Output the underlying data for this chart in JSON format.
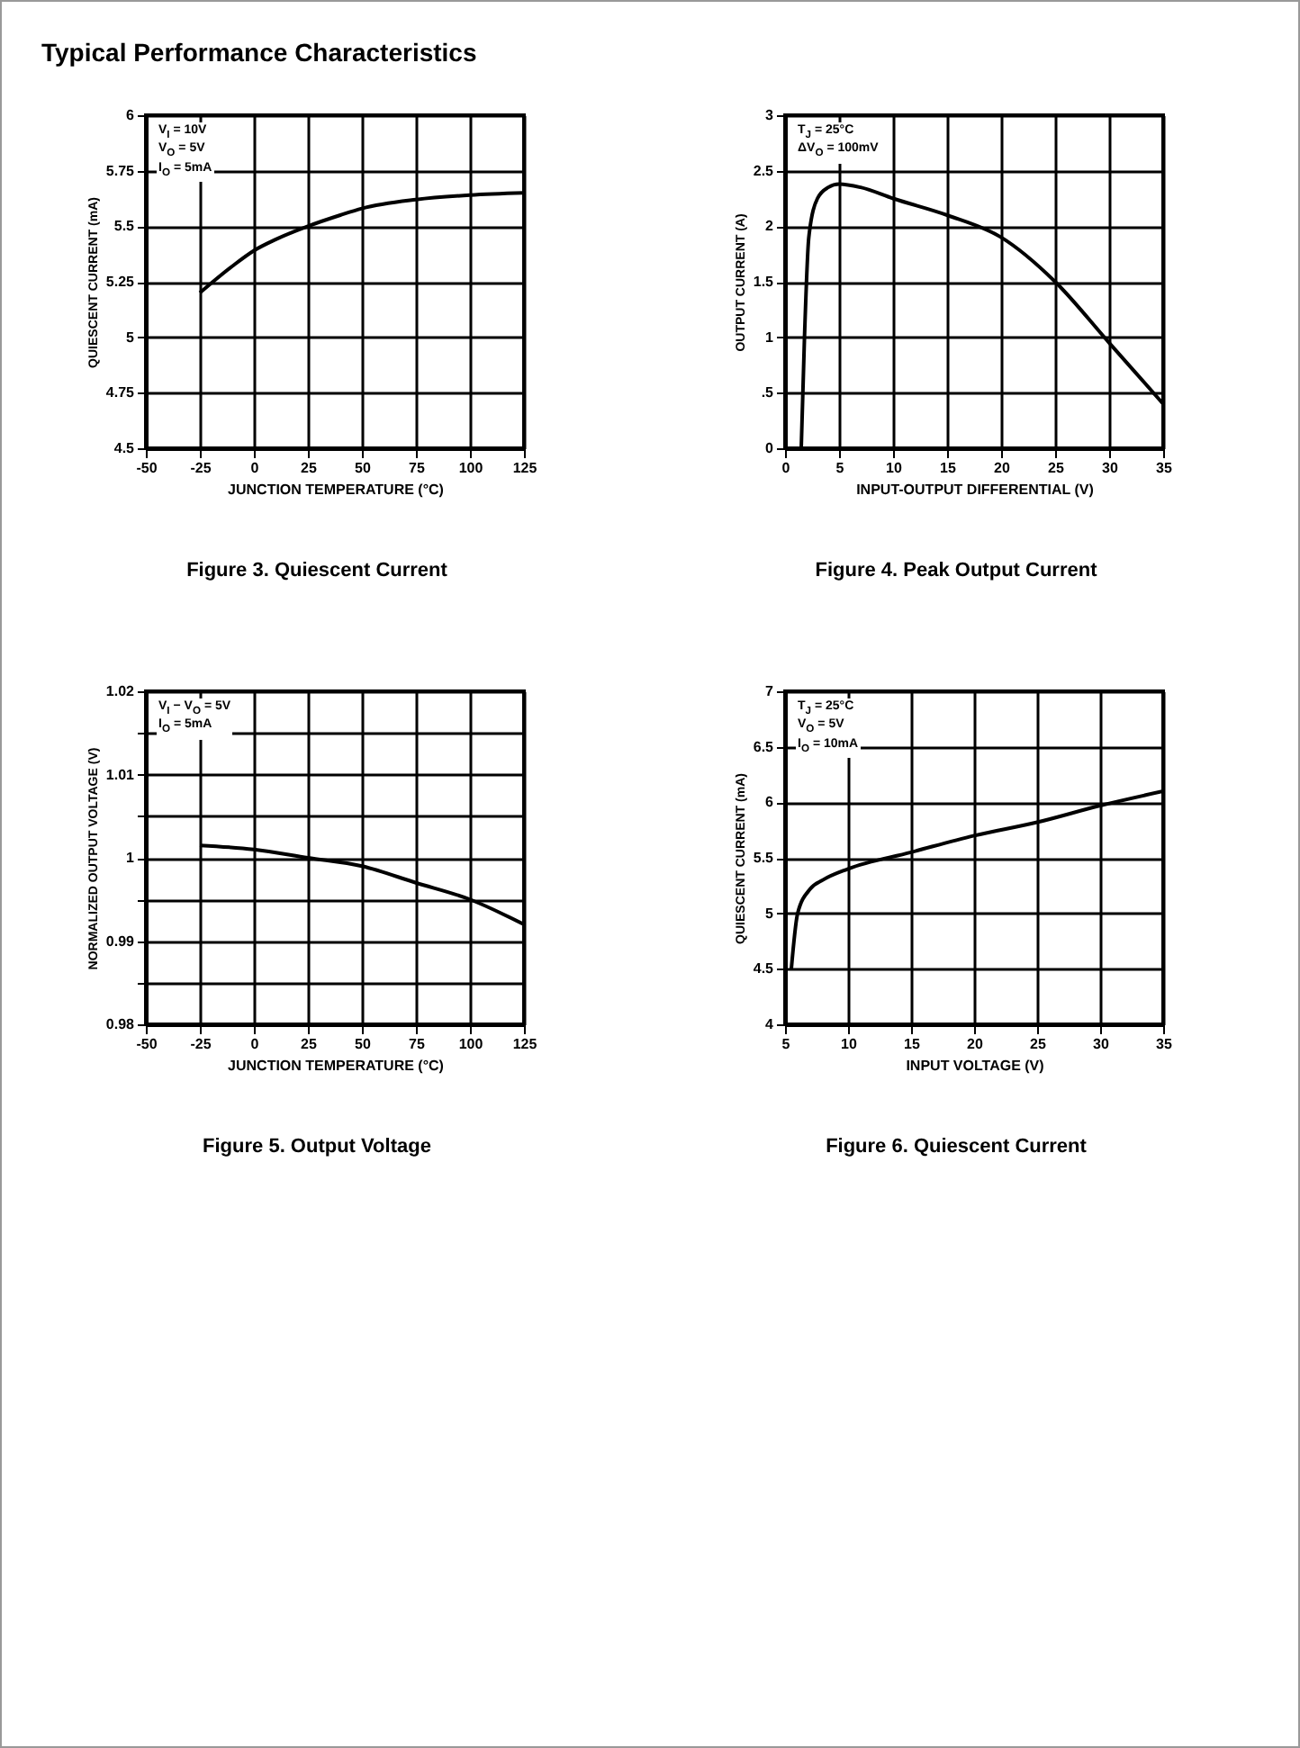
{
  "chart_data": [
    {
      "type": "line",
      "title": "Typical Performance Characteristics",
      "xlabel": "JUNCTION TEMPERATURE (°C)",
      "ylabel": "QUIESCENT CURRENT (mA)",
      "annotations": [
        "V$_{I}$ = 10V",
        "V$_{O}$ = 5V",
        "I$_{O}$ = 5mA",
        "Figure 3. Quiescent Current"
      ],
      "xlim": [
        -50,
        125
      ],
      "xticks": [
        -50,
        -25,
        0,
        25,
        50,
        75,
        100,
        125
      ],
      "ylim": [
        4.5,
        6
      ],
      "yticks": [
        4.5,
        4.75,
        5,
        5.25,
        5.5,
        5.75,
        6
      ],
      "grid": true,
      "series": [
        {
          "color": "#000000",
          "x": [
            -25,
            -10,
            0,
            10,
            25,
            40,
            50,
            75,
            100,
            125
          ],
          "values": [
            5.2,
            5.32,
            5.39,
            5.44,
            5.5,
            5.55,
            5.58,
            5.62,
            5.64,
            5.65
          ]
        }
      ]
    },
    {
      "type": "line",
      "xlabel": "INPUT-OUTPUT DIFFERENTIAL (V)",
      "ylabel": "OUTPUT CURRENT (A)",
      "annotations": [
        "T$_{J}$ = 25°C",
        "ΔV$_{O}$ = 100mV",
        "Figure 4. Peak Output Current"
      ],
      "xlim": [
        0,
        35
      ],
      "xticks": [
        0,
        5,
        10,
        15,
        20,
        25,
        30,
        35
      ],
      "ylim": [
        0,
        3
      ],
      "yticks": [
        0,
        {
          "value": 0.5,
          "label": ".5"
        },
        1,
        1.5,
        2,
        2.5,
        3
      ],
      "grid": true,
      "series": [
        {
          "color": "#000000",
          "x": [
            1.5,
            1.8,
            2.2,
            3,
            4,
            5,
            7,
            10,
            15,
            20,
            25,
            30,
            35
          ],
          "values": [
            0,
            1,
            1.9,
            2.25,
            2.35,
            2.38,
            2.35,
            2.25,
            2.1,
            1.9,
            1.5,
            0.95,
            0.4
          ]
        }
      ]
    },
    {
      "type": "line",
      "xlabel": "JUNCTION TEMPERATURE (°C)",
      "ylabel": "NORMALIZED OUTPUT VOLTAGE (V)",
      "annotations": [
        "V$_{I}$ − V$_{O}$ = 5V",
        "I$_{O}$ = 5mA",
        "Figure 5. Output Voltage"
      ],
      "xlim": [
        -50,
        125
      ],
      "xticks": [
        -50,
        -25,
        0,
        25,
        50,
        75,
        100,
        125
      ],
      "ylim": [
        0.98,
        1.02
      ],
      "yticks": [
        0.98,
        {
          "value": 0.985,
          "label": null
        },
        0.99,
        {
          "value": 0.995,
          "label": null
        },
        1,
        {
          "value": 1.005,
          "label": null
        },
        1.01,
        {
          "value": 1.015,
          "label": null
        },
        1.02
      ],
      "grid": true,
      "series": [
        {
          "color": "#000000",
          "x": [
            -25,
            0,
            25,
            50,
            75,
            100,
            125
          ],
          "values": [
            1.0015,
            1.001,
            1.0,
            0.999,
            0.997,
            0.995,
            0.992
          ]
        }
      ]
    },
    {
      "type": "line",
      "xlabel": "INPUT VOLTAGE (V)",
      "ylabel": "QUIESCENT CURRENT (mA)",
      "annotations": [
        "T$_{J}$ = 25°C",
        "V$_{O}$ = 5V",
        "I$_{O}$ = 10mA",
        "Figure 6. Quiescent Current"
      ],
      "xlim": [
        5,
        35
      ],
      "xticks": [
        5,
        10,
        15,
        20,
        25,
        30,
        35
      ],
      "ylim": [
        4,
        7
      ],
      "yticks": [
        4,
        4.5,
        5,
        5.5,
        6,
        6.5,
        7
      ],
      "grid": true,
      "series": [
        {
          "color": "#000000",
          "x": [
            5.5,
            6,
            7,
            8,
            10,
            15,
            20,
            25,
            30,
            35
          ],
          "values": [
            4.5,
            5.0,
            5.22,
            5.3,
            5.4,
            5.55,
            5.7,
            5.82,
            5.97,
            6.1
          ]
        }
      ]
    }
  ]
}
